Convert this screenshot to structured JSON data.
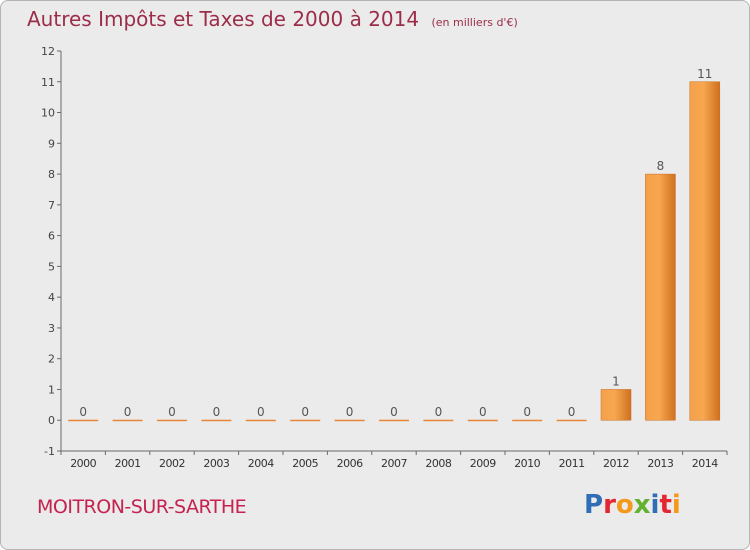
{
  "title": "Autres Impôts et Taxes de 2000 à 2014",
  "unit": "(en milliers d'€)",
  "location": "MOITRON-SUR-SARTHE",
  "logo": "Proxiti",
  "colors": {
    "title": "#9c2d4a",
    "location": "#c5224f",
    "bar_light": "#f7a24e",
    "bar_dark": "#c86a1e",
    "background": "#ebebeb",
    "logo_letters": [
      "#2f6db5",
      "#e3262f",
      "#f39a1b",
      "#62b22f",
      "#2f6db5",
      "#e3262f",
      "#f39a1b"
    ]
  },
  "chart_data": {
    "type": "bar",
    "categories": [
      "2000",
      "2001",
      "2002",
      "2003",
      "2004",
      "2005",
      "2006",
      "2007",
      "2008",
      "2009",
      "2010",
      "2011",
      "2012",
      "2013",
      "2014"
    ],
    "values": [
      0,
      0,
      0,
      0,
      0,
      0,
      0,
      0,
      0,
      0,
      0,
      0,
      1,
      8,
      11
    ],
    "data_labels": [
      "0",
      "0",
      "0",
      "0",
      "0",
      "0",
      "0",
      "0",
      "0",
      "0",
      "0",
      "0",
      "1",
      "8",
      "11"
    ],
    "yticks": [
      -1,
      0,
      1,
      2,
      3,
      4,
      5,
      6,
      7,
      8,
      9,
      10,
      11,
      12
    ],
    "ylim": [
      -1,
      12
    ],
    "xlabel": "",
    "ylabel": "",
    "grid": false
  }
}
